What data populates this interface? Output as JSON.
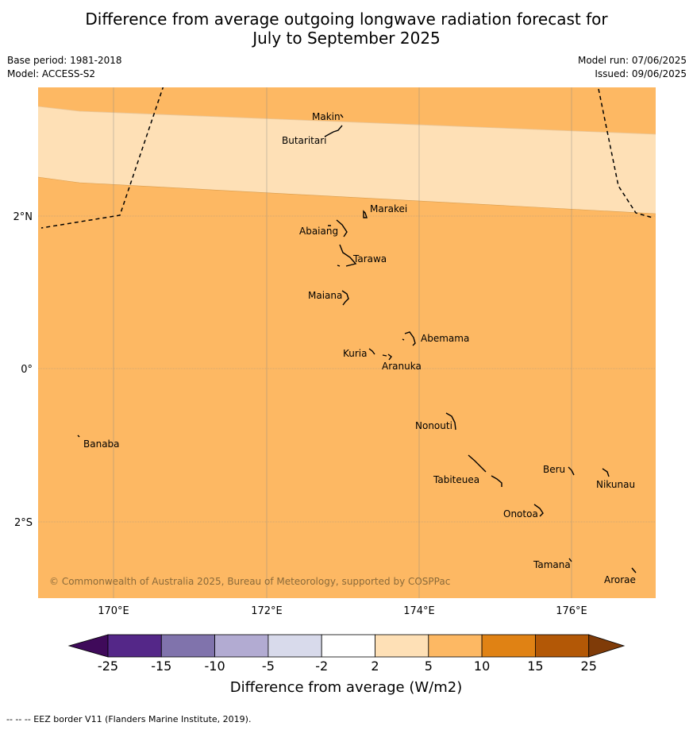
{
  "title": {
    "line1": "Difference from average outgoing longwave radiation forecast for",
    "line2": "July to September 2025"
  },
  "meta": {
    "base_period": "Base period: 1981-2018",
    "model": "Model: ACCESS-S2",
    "model_run": "Model run: 07/06/2025",
    "issued": "Issued: 09/06/2025"
  },
  "map": {
    "lon_ticks": [
      "170°E",
      "172°E",
      "174°E",
      "176°E"
    ],
    "lat_ticks": [
      "2°N",
      "0°",
      "2°S"
    ],
    "copyright": "© Commonwealth of Australia 2025, Bureau of Meteorology, supported by COSPPac",
    "colors": {
      "band_2_5": "#fee0b6",
      "band_5_10": "#fdb863",
      "border": "#000000"
    },
    "places": [
      "Makin",
      "Butaritari",
      "Marakei",
      "Abaiang",
      "Tarawa",
      "Maiana",
      "Abemama",
      "Kuria",
      "Aranuka",
      "Banaba",
      "Nonouti",
      "Beru",
      "Tabiteuea",
      "Nikunau",
      "Onotoa",
      "Tamana",
      "Arorae"
    ]
  },
  "colorbar": {
    "label": "Difference from average (W/m2)",
    "ticks": [
      "-25",
      "-15",
      "-10",
      "-5",
      "-2",
      "2",
      "5",
      "10",
      "15",
      "25"
    ],
    "colors": [
      "#3f0a5a",
      "#542788",
      "#8073ac",
      "#b2abd2",
      "#d8daeb",
      "#ffffff",
      "#fee0b6",
      "#fdb863",
      "#e08214",
      "#b35806",
      "#7f3b08"
    ]
  },
  "footnote": "-- -- -- EEZ border V11 (Flanders Marine Institute, 2019)."
}
